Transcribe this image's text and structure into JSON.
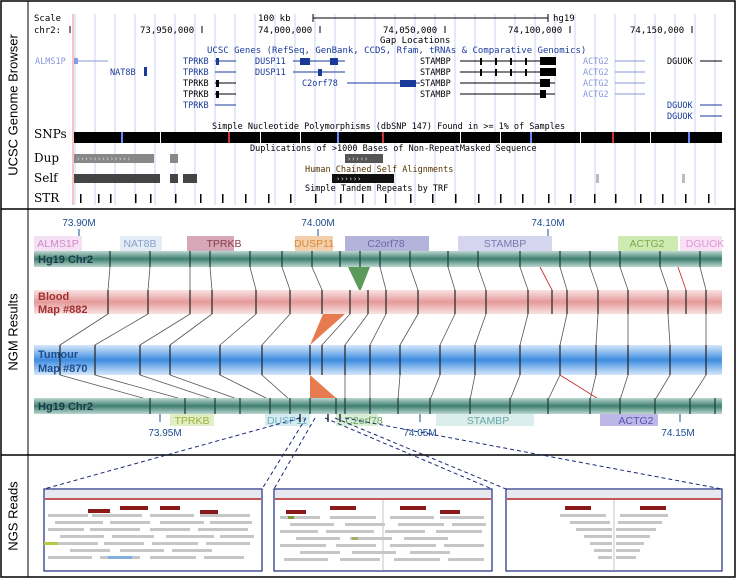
{
  "panels": [
    {
      "label": "UCSC Genome Browser"
    },
    {
      "label": "NGM Results"
    },
    {
      "label": "NGS Reads"
    }
  ],
  "ucsc": {
    "scale_label": "Scale",
    "scale_value": "100 kb",
    "assembly": "hg19",
    "chrom_label": "chr2:",
    "coords": [
      "73,950,000",
      "74,000,000",
      "74,050,000",
      "74,100,000",
      "74,150,000"
    ],
    "gap_label": "Gap Locations",
    "genes_track_title": "UCSC Genes (RefSeq, GenBank, CCDS, Rfam, tRNAs & Comparative Genomics)",
    "genes": {
      "alms1p": "ALMS1P",
      "nat8b": "NAT8B",
      "tprkb": [
        "TPRKB",
        "TPRKB",
        "TPRKB",
        "TPRKB",
        "TPRKB"
      ],
      "dusp11": [
        "DUSP11",
        "DUSP11"
      ],
      "c2orf78": "C2orf78",
      "stambp": [
        "STAMBP",
        "STAMBP",
        "STAMBP",
        "STAMBP"
      ],
      "actg2": [
        "ACTG2",
        "ACTG2",
        "ACTG2",
        "ACTG2"
      ],
      "dguok": [
        "DGUOK",
        "DGUOK",
        "DGUOK"
      ]
    },
    "snp_title": "Simple Nucleotide Polymorphisms (dbSNP 147) Found in >= 1% of Samples",
    "dup_title": "Duplications of >1000 Bases of Non-RepeatMasked Sequence",
    "self_title": "Human Chained Self Alignments",
    "str_title": "Simple Tandem Repeats by TRF",
    "track_labels": [
      "SNPs",
      "Dup",
      "Self",
      "STR"
    ]
  },
  "ngm": {
    "top_ticks": [
      "73.90M",
      "74.00M",
      "74.10M"
    ],
    "bottom_ticks": [
      "73.95M",
      "74.05M",
      "74.15M"
    ],
    "ref_label": "Hg19 Chr2",
    "blood_label": [
      "Blood",
      "Map #882"
    ],
    "tumour_label": [
      "Tumour",
      "Map #870"
    ],
    "ref_genes_top": [
      "ALMS1P",
      "NAT8B",
      "TPRKB",
      "DUSP11",
      "C2orf78",
      "STAMBP",
      "ACTG2",
      "DGUOK"
    ],
    "ref_genes_bottom": [
      "TPRKB",
      "DUSP11",
      "C2orf78",
      "STAMBP",
      "ACTG2"
    ]
  },
  "colors": {
    "accent_blue": "#3a6fb5",
    "ref_bar": "#4a8a7a",
    "blood_bar": "#e8a0a0",
    "tumour_bar": "#4a90d9",
    "gene_blue": "#1a3a9a",
    "green_wedge": "#5a9a5a",
    "orange_wedge": "#e87a50"
  }
}
